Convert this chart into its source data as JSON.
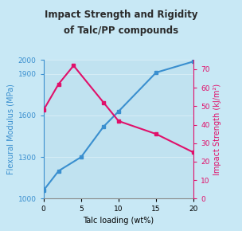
{
  "title_line1": "Impact Strength and Rigidity",
  "title_line2": "of Talc/PP compounds",
  "xlabel": "Talc loading (wt%)",
  "ylabel_left": "Flexural Modulus (MPa)",
  "ylabel_right": "Impact Strength (kJ/m²)",
  "background_color": "#cce8f5",
  "outer_background": "#c8e8f5",
  "plot_bg_color": "#c0e2f0",
  "flexural_x": [
    0,
    2,
    5,
    8,
    10,
    15,
    20
  ],
  "flexural_y": [
    1060,
    1200,
    1300,
    1520,
    1630,
    1910,
    1990
  ],
  "impact_x": [
    0,
    2,
    4,
    8,
    10,
    15,
    20
  ],
  "impact_y": [
    48,
    62,
    72,
    52,
    42,
    35,
    25
  ],
  "flexural_color": "#3a8fcf",
  "impact_color": "#e0106a",
  "ylim_left": [
    1000,
    2000
  ],
  "ylim_right": [
    0,
    75
  ],
  "xlim": [
    0,
    20
  ],
  "yticks_left": [
    1000,
    1300,
    1600,
    1900,
    2000
  ],
  "yticks_right": [
    0,
    10,
    20,
    30,
    40,
    50,
    60,
    70
  ],
  "xticks": [
    0,
    5,
    10,
    15,
    20
  ],
  "title_fontsize": 8.5,
  "label_fontsize": 7,
  "tick_fontsize": 6.5,
  "title_color": "#2a2a2a"
}
